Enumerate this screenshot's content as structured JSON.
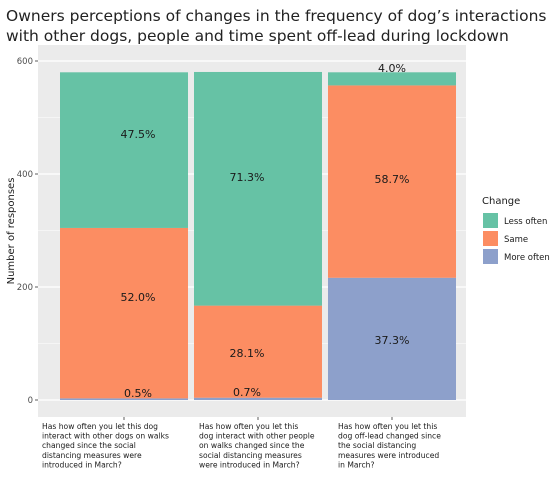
{
  "chart_data": {
    "type": "bar",
    "stacked": true,
    "title_lines": [
      "Owners perceptions of changes in the frequency of dog’s interactions",
      "with other dogs, people and time spent off-lead during lockdown"
    ],
    "ylabel": "Number of responses",
    "ylim": [
      0,
      600
    ],
    "yticks": [
      "0",
      "200",
      "400",
      "600"
    ],
    "total": 580,
    "categories": [
      [
        "Has how often you let this dog",
        "interact with other dogs on walks",
        "changed since the social",
        "distancing measures were",
        "introduced in March?"
      ],
      [
        "Has how often you let this",
        "dog interact with other people",
        "on walks changed since the",
        "social distancing measures",
        "were introduced in March?"
      ],
      [
        "Has how often you let this",
        "dog off-lead changed since",
        "the social distancing",
        "measures were introduced",
        "in March?"
      ]
    ],
    "legend": {
      "title": "Change",
      "position": "right"
    },
    "series": [
      {
        "name": "More often",
        "color": "#8DA0CB",
        "values": [
          0.5,
          0.7,
          37.3
        ],
        "labels": [
          "0.5%",
          "0.7%",
          "37.3%"
        ]
      },
      {
        "name": "Same",
        "color": "#FC8D62",
        "values": [
          52.0,
          28.1,
          58.7
        ],
        "labels": [
          "52.0%",
          "28.1%",
          "58.7%"
        ]
      },
      {
        "name": "Less often",
        "color": "#66C2A5",
        "values": [
          47.5,
          71.3,
          4.0
        ],
        "labels": [
          "47.5%",
          "71.3%",
          "4.0%"
        ]
      }
    ],
    "legend_order": [
      "Less often",
      "Same",
      "More often"
    ],
    "grid": true,
    "panel_bg": "#EBEBEB",
    "grid_color": "#FFFFFF"
  }
}
